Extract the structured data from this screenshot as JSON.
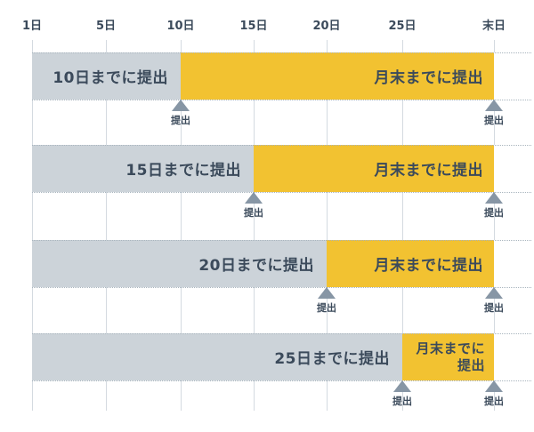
{
  "axis": {
    "ticks": [
      "1日",
      "5日",
      "10日",
      "15日",
      "20日",
      "25日",
      "末日"
    ]
  },
  "rows": [
    {
      "gray_label": "10日までに提出",
      "yellow_label": "月末までに提出",
      "markers": [
        "提出",
        "提出"
      ]
    },
    {
      "gray_label": "15日までに提出",
      "yellow_label": "月末までに提出",
      "markers": [
        "提出",
        "提出"
      ]
    },
    {
      "gray_label": "20日までに提出",
      "yellow_label": "月末までに提出",
      "markers": [
        "提出",
        "提出"
      ]
    },
    {
      "gray_label": "25日までに提出",
      "yellow_label": "月末までに提出",
      "markers": [
        "提出",
        "提出"
      ]
    }
  ],
  "colors": {
    "gray_bar": "#ccd3d9",
    "yellow_bar": "#f2c231",
    "text": "#3b4a5b",
    "marker_triangle": "#8796a5",
    "gridline": "#d4dae0",
    "dotted_line": "#a9b5be",
    "background": "#ffffff"
  },
  "chart_data": {
    "type": "bar",
    "subtype": "gantt-timeline",
    "title": "",
    "x_tick_labels": [
      "1日",
      "5日",
      "10日",
      "15日",
      "20日",
      "25日",
      "末日"
    ],
    "grid": true,
    "legend": null,
    "rows": [
      {
        "segments": [
          {
            "label": "10日までに提出",
            "start": "1日",
            "end": "10日",
            "color": "#ccd3d9"
          },
          {
            "label": "月末までに提出",
            "start": "10日",
            "end": "末日",
            "color": "#f2c231"
          }
        ],
        "markers": [
          {
            "label": "提出",
            "position": "10日"
          },
          {
            "label": "提出",
            "position": "末日"
          }
        ]
      },
      {
        "segments": [
          {
            "label": "15日までに提出",
            "start": "1日",
            "end": "15日",
            "color": "#ccd3d9"
          },
          {
            "label": "月末までに提出",
            "start": "15日",
            "end": "末日",
            "color": "#f2c231"
          }
        ],
        "markers": [
          {
            "label": "提出",
            "position": "15日"
          },
          {
            "label": "提出",
            "position": "末日"
          }
        ]
      },
      {
        "segments": [
          {
            "label": "20日までに提出",
            "start": "1日",
            "end": "20日",
            "color": "#ccd3d9"
          },
          {
            "label": "月末までに提出",
            "start": "20日",
            "end": "末日",
            "color": "#f2c231"
          }
        ],
        "markers": [
          {
            "label": "提出",
            "position": "20日"
          },
          {
            "label": "提出",
            "position": "末日"
          }
        ]
      },
      {
        "segments": [
          {
            "label": "25日までに提出",
            "start": "1日",
            "end": "25日",
            "color": "#ccd3d9"
          },
          {
            "label": "月末までに提出",
            "start": "25日",
            "end": "末日",
            "color": "#f2c231"
          }
        ],
        "markers": [
          {
            "label": "提出",
            "position": "25日"
          },
          {
            "label": "提出",
            "position": "末日"
          }
        ]
      }
    ]
  }
}
